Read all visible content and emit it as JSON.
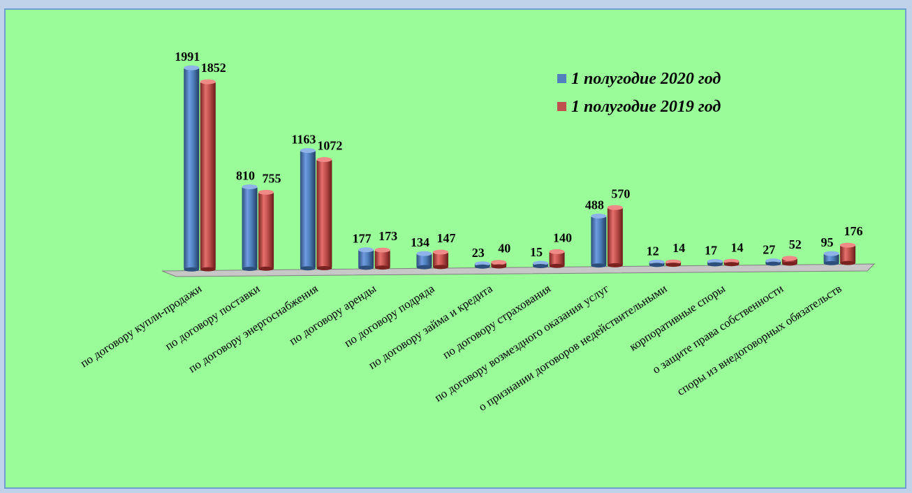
{
  "chart_data": {
    "type": "bar",
    "categories": [
      "по договору купли-продажи",
      "по договору поставки",
      "по договору энергоснабжения",
      "по договору аренды",
      "по договору подряда",
      "по договору займа и кредита",
      "по договору страхования",
      "по договору возмездного оказания услуг",
      "о признании договоров недействительными",
      "корпоративные споры",
      "о защите права собственности",
      "споры из внедоговорных обязательств"
    ],
    "series": [
      {
        "name": "1 полугодие 2020 год",
        "color": "#4f81bd",
        "values": [
          1991,
          810,
          1163,
          177,
          134,
          23,
          15,
          488,
          12,
          17,
          27,
          95
        ]
      },
      {
        "name": "1 полугодие 2019 год",
        "color": "#c0504d",
        "values": [
          1852,
          755,
          1072,
          173,
          147,
          40,
          140,
          570,
          14,
          14,
          52,
          176
        ]
      }
    ],
    "title": "",
    "xlabel": "",
    "ylabel": "",
    "ylim": [
      0,
      2000
    ],
    "legend": "top-right",
    "grid": false
  }
}
